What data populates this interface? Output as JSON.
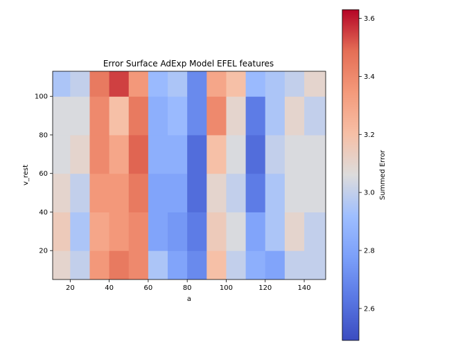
{
  "chart_data": {
    "type": "heatmap",
    "title": "Error Surface AdExp Model EFEL features",
    "xlabel": "a",
    "ylabel": "v_rest",
    "xlim": [
      11,
      151
    ],
    "ylim": [
      5,
      113
    ],
    "xticks": [
      20,
      40,
      60,
      80,
      100,
      120,
      140
    ],
    "yticks": [
      20,
      40,
      60,
      80,
      100
    ],
    "colorbar": {
      "label": "Summed Error",
      "range": [
        2.49,
        3.63
      ],
      "ticks": [
        2.6,
        2.8,
        3.0,
        3.2,
        3.4,
        3.6
      ],
      "colormap": "coolwarm"
    },
    "x": [
      15,
      25,
      35,
      45,
      55,
      65,
      75,
      85,
      95,
      105,
      115,
      125,
      135,
      145
    ],
    "y": [
      10,
      30,
      50,
      70,
      90,
      110
    ],
    "z": [
      [
        3.1,
        3.0,
        3.35,
        3.45,
        3.4,
        2.95,
        2.8,
        2.7,
        3.2,
        3.0,
        2.85,
        2.8,
        3.0,
        3.0
      ],
      [
        3.15,
        2.95,
        3.3,
        3.35,
        3.4,
        2.8,
        2.75,
        2.65,
        3.15,
        3.05,
        2.8,
        2.95,
        3.1,
        3.0
      ],
      [
        3.1,
        3.0,
        3.35,
        3.35,
        3.45,
        2.8,
        2.8,
        2.6,
        3.1,
        3.0,
        2.65,
        2.95,
        3.05,
        3.05
      ],
      [
        3.05,
        3.1,
        3.4,
        3.3,
        3.5,
        2.85,
        2.85,
        2.6,
        3.2,
        3.05,
        2.6,
        3.0,
        3.05,
        3.05
      ],
      [
        3.05,
        3.05,
        3.4,
        3.2,
        3.45,
        2.85,
        2.9,
        2.7,
        3.4,
        3.1,
        2.65,
        2.95,
        3.1,
        3.0
      ],
      [
        2.95,
        3.0,
        3.45,
        3.55,
        3.35,
        2.9,
        2.95,
        2.7,
        3.3,
        3.2,
        2.9,
        2.95,
        3.0,
        3.1
      ]
    ]
  }
}
